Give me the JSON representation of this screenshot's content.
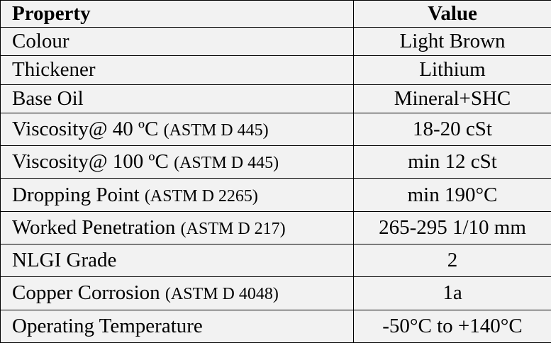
{
  "table": {
    "header": {
      "property": "Property",
      "value": "Value"
    },
    "rows": [
      {
        "property": "Colour",
        "standard": "",
        "value": "Light Brown"
      },
      {
        "property": "Thickener",
        "standard": "",
        "value": "Lithium"
      },
      {
        "property": "Base Oil",
        "standard": "",
        "value": "Mineral+SHC"
      },
      {
        "property": "Viscosity@ 40 ºC ",
        "standard": "(ASTM D 445)",
        "value": "18-20 cSt"
      },
      {
        "property": "Viscosity@ 100 ºC ",
        "standard": "(ASTM D 445)",
        "value": "min 12 cSt"
      },
      {
        "property": "Dropping Point ",
        "standard": "(ASTM D 2265)",
        "value": "min 190°C"
      },
      {
        "property": "Worked Penetration ",
        "standard": "(ASTM D 217)",
        "value": "265-295 1/10 mm"
      },
      {
        "property": "NLGI Grade",
        "standard": "",
        "value": "2"
      },
      {
        "property": "Copper Corrosion ",
        "standard": "(ASTM D 4048)",
        "value": "1a"
      },
      {
        "property": "Operating Temperature",
        "standard": "",
        "value": "-50°C to +140°C"
      }
    ]
  }
}
